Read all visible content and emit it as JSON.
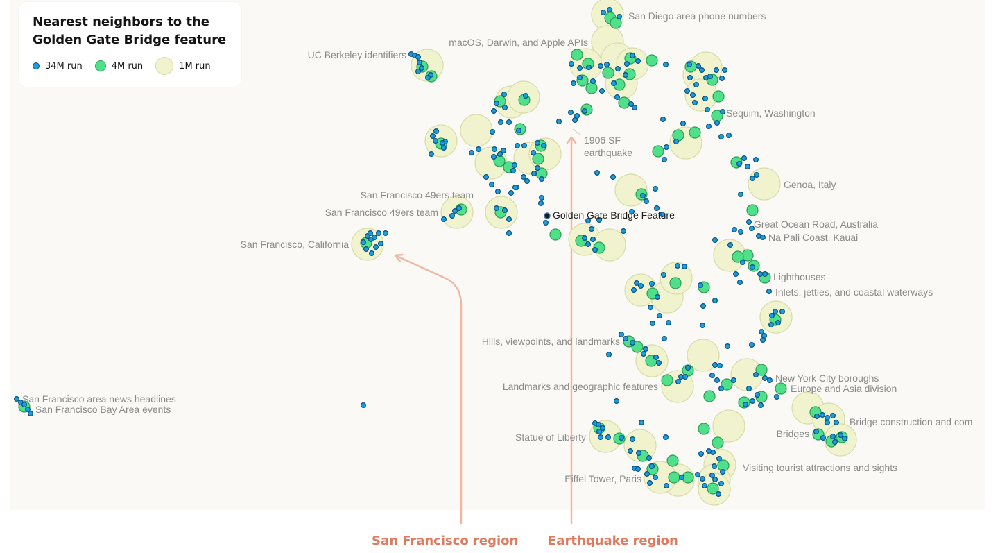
{
  "legend": {
    "title": "Nearest neighbors to the Golden Gate Bridge feature",
    "items": [
      {
        "label": "34M run",
        "size": "small",
        "color": "#1b9ee0"
      },
      {
        "label": "4M run",
        "size": "medium",
        "color": "#4fe08a"
      },
      {
        "label": "1M run",
        "size": "large",
        "color": "#f1f3cf"
      }
    ]
  },
  "regions": {
    "sf": "San Francisco region",
    "eq": "Earthquake region"
  },
  "colors": {
    "small_fill": "#1b9ee0",
    "small_stroke": "#0b4f7a",
    "medium_fill": "#4fe08a",
    "medium_stroke": "#2e9a55",
    "large_fill": "#f1f3cf",
    "large_stroke": "#d8dba8",
    "arrow": "#f0b7a4",
    "region_text": "#e07a5f"
  },
  "chart_data": {
    "type": "scatter",
    "title": "Nearest neighbors to the Golden Gate Bridge feature",
    "focus_label": "Golden Gate Bridge Feature",
    "series": [
      {
        "name": "34M run",
        "marker": "small"
      },
      {
        "name": "4M run",
        "marker": "medium"
      },
      {
        "name": "1M run",
        "marker": "large"
      }
    ],
    "labels": [
      "San Diego area phone numbers",
      "macOS, Darwin, and Apple APIs",
      "UC Berkeley identifiers",
      "Sequim, Washington",
      "1906 SF earthquake",
      "Genoa, Italy",
      "San Francisco 49ers team",
      "San Francisco 49ers team",
      "Great Ocean Road, Australia",
      "Na Pali Coast, Kauai",
      "San Francisco, California",
      "Lighthouses",
      "Inlets, jetties, and coastal waterways",
      "Hills, viewpoints, and landmarks",
      "New York City boroughs",
      "Landmarks and geographic features",
      "Europe and Asia division",
      "San Francisco area news headlines",
      "San Francisco Bay Area events",
      "Bridge construction and com",
      "Statue of Liberty",
      "Bridges",
      "Visiting tourist attractions and sights",
      "Eiffel Tower, Paris"
    ],
    "grid": false,
    "legend_position": "top-left"
  }
}
